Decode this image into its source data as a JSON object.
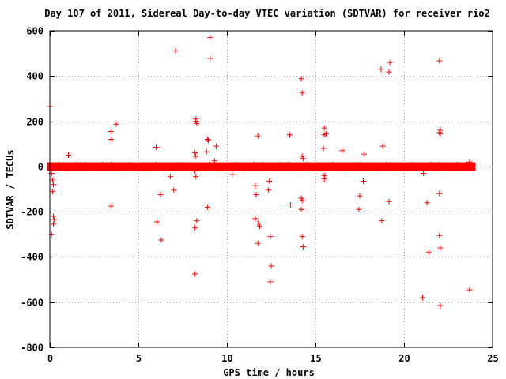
{
  "chart_data": {
    "type": "scatter",
    "title": "Day 107 of 2011, Sidereal Day-to-day VTEC variation (SDTVAR) for receiver rio2",
    "xlabel": "GPS time / hours",
    "ylabel": "SDTVAR / TECUs",
    "xlim": [
      0,
      25
    ],
    "ylim": [
      -800,
      600
    ],
    "xticks": [
      0,
      5,
      10,
      15,
      20,
      25
    ],
    "yticks": [
      -800,
      -600,
      -400,
      -200,
      0,
      200,
      400,
      600
    ],
    "xtick_labels": [
      "0",
      "5",
      "10",
      "15",
      "20",
      "25"
    ],
    "ytick_labels": [
      "-800",
      "-600",
      "-400",
      "-200",
      "0",
      "200",
      "400",
      "600"
    ],
    "grid": true,
    "marker": "+",
    "color": "#ff0000",
    "series": [
      {
        "name": "SDTVAR",
        "band": {
          "x_start": 0.0,
          "x_end": 23.9,
          "y_min": -8,
          "y_max": 8
        },
        "points": [
          [
            0.0,
            265
          ],
          [
            0.1,
            -30
          ],
          [
            0.15,
            -60
          ],
          [
            0.2,
            -80
          ],
          [
            0.15,
            -110
          ],
          [
            0.2,
            -220
          ],
          [
            0.25,
            -235
          ],
          [
            0.2,
            -255
          ],
          [
            0.1,
            -300
          ],
          [
            1.05,
            50
          ],
          [
            3.45,
            155
          ],
          [
            3.45,
            120
          ],
          [
            3.75,
            187
          ],
          [
            3.45,
            -175
          ],
          [
            6.0,
            85
          ],
          [
            6.05,
            -245
          ],
          [
            6.25,
            -125
          ],
          [
            6.3,
            -325
          ],
          [
            6.8,
            -45
          ],
          [
            7.0,
            -105
          ],
          [
            7.1,
            512
          ],
          [
            8.25,
            210
          ],
          [
            8.25,
            200
          ],
          [
            8.3,
            190
          ],
          [
            8.2,
            60
          ],
          [
            8.25,
            45
          ],
          [
            8.2,
            -20
          ],
          [
            8.25,
            -45
          ],
          [
            8.3,
            -240
          ],
          [
            8.2,
            -270
          ],
          [
            8.2,
            -475
          ],
          [
            8.85,
            65
          ],
          [
            8.9,
            120
          ],
          [
            8.95,
            115
          ],
          [
            9.05,
            570
          ],
          [
            9.05,
            478
          ],
          [
            8.9,
            -180
          ],
          [
            9.4,
            90
          ],
          [
            9.3,
            25
          ],
          [
            10.3,
            -35
          ],
          [
            11.75,
            135
          ],
          [
            11.6,
            -85
          ],
          [
            11.65,
            -125
          ],
          [
            11.6,
            -230
          ],
          [
            11.75,
            -250
          ],
          [
            11.85,
            -265
          ],
          [
            11.75,
            -340
          ],
          [
            12.4,
            -65
          ],
          [
            12.35,
            -105
          ],
          [
            12.45,
            -310
          ],
          [
            12.5,
            -440
          ],
          [
            12.45,
            -510
          ],
          [
            13.55,
            140
          ],
          [
            13.6,
            -170
          ],
          [
            14.2,
            388
          ],
          [
            14.25,
            325
          ],
          [
            14.25,
            45
          ],
          [
            14.3,
            35
          ],
          [
            14.2,
            -140
          ],
          [
            14.25,
            -150
          ],
          [
            14.2,
            -190
          ],
          [
            14.25,
            -310
          ],
          [
            14.3,
            -355
          ],
          [
            15.45,
            80
          ],
          [
            15.5,
            170
          ],
          [
            15.5,
            140
          ],
          [
            15.6,
            145
          ],
          [
            15.5,
            -40
          ],
          [
            15.5,
            -55
          ],
          [
            16.5,
            70
          ],
          [
            17.5,
            -130
          ],
          [
            17.45,
            -190
          ],
          [
            17.7,
            -65
          ],
          [
            17.75,
            55
          ],
          [
            18.7,
            430
          ],
          [
            18.8,
            90
          ],
          [
            18.75,
            -240
          ],
          [
            19.2,
            460
          ],
          [
            19.15,
            418
          ],
          [
            19.15,
            -155
          ],
          [
            21.1,
            -30
          ],
          [
            21.05,
            -580
          ],
          [
            21.3,
            -160
          ],
          [
            21.4,
            -380
          ],
          [
            22.0,
            467
          ],
          [
            22.05,
            160
          ],
          [
            22.0,
            150
          ],
          [
            22.05,
            145
          ],
          [
            22.0,
            -120
          ],
          [
            22.0,
            -305
          ],
          [
            22.05,
            -360
          ],
          [
            22.05,
            -615
          ],
          [
            23.7,
            20
          ],
          [
            23.7,
            -545
          ]
        ]
      }
    ]
  }
}
